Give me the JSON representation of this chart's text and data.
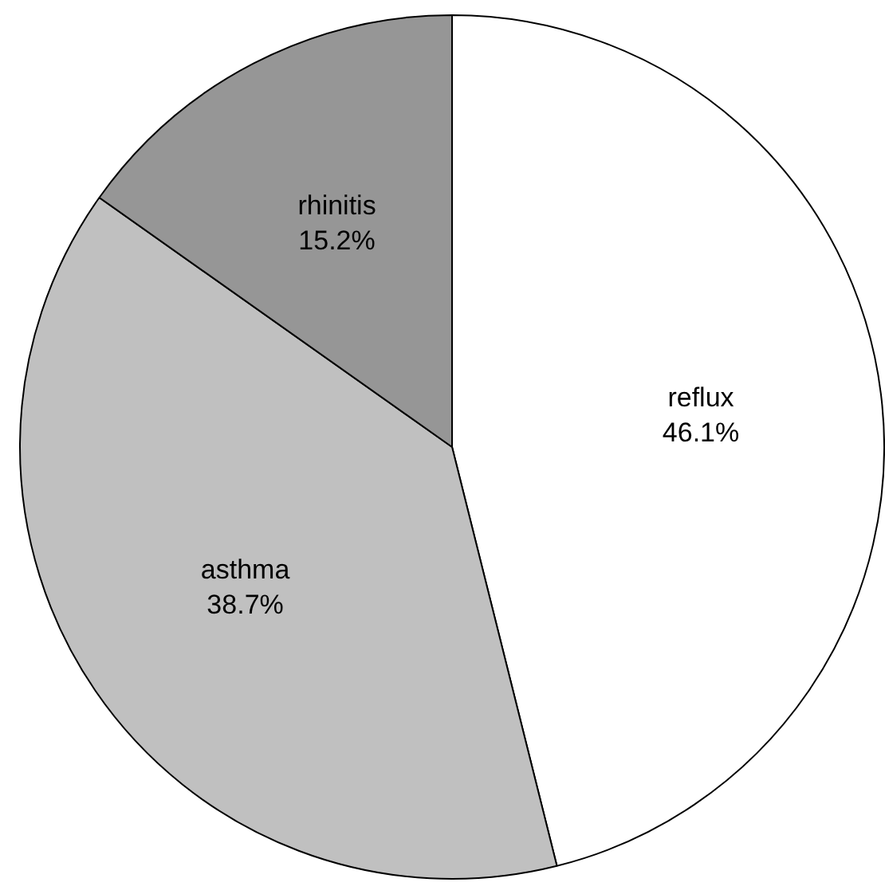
{
  "chart_data": {
    "type": "pie",
    "categories": [
      "reflux",
      "asthma",
      "rhinitis"
    ],
    "values": [
      46.1,
      38.7,
      15.2
    ],
    "colors": [
      "#ffffff",
      "#c0c0c0",
      "#969696"
    ],
    "value_labels": [
      "46.1%",
      "38.7%",
      "15.2%"
    ]
  }
}
